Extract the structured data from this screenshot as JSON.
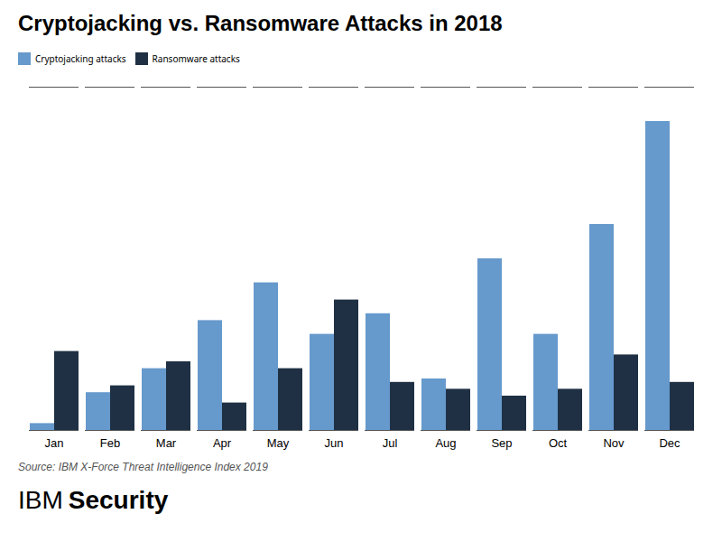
{
  "chart_data": {
    "type": "bar",
    "title": "Cryptojacking vs. Ransomware Attacks in 2018",
    "categories": [
      "Jan",
      "Feb",
      "Mar",
      "Apr",
      "May",
      "Jun",
      "Jul",
      "Aug",
      "Sep",
      "Oct",
      "Nov",
      "Dec"
    ],
    "series": [
      {
        "name": "Cryptojacking attacks",
        "color": "#6699cc",
        "values": [
          2,
          11,
          18,
          32,
          43,
          28,
          34,
          15,
          50,
          28,
          60,
          90
        ]
      },
      {
        "name": "Ransomware attacks",
        "color": "#1f3044",
        "values": [
          23,
          13,
          20,
          8,
          18,
          38,
          14,
          12,
          10,
          12,
          22,
          14
        ]
      }
    ],
    "ylim": [
      0,
      100
    ],
    "tick_labels": "x",
    "grid": false,
    "legend": "upper left",
    "annotations": [
      "Source: IBM X-Force Threat Intelligence Index 2019",
      "IBM",
      "Security"
    ]
  }
}
